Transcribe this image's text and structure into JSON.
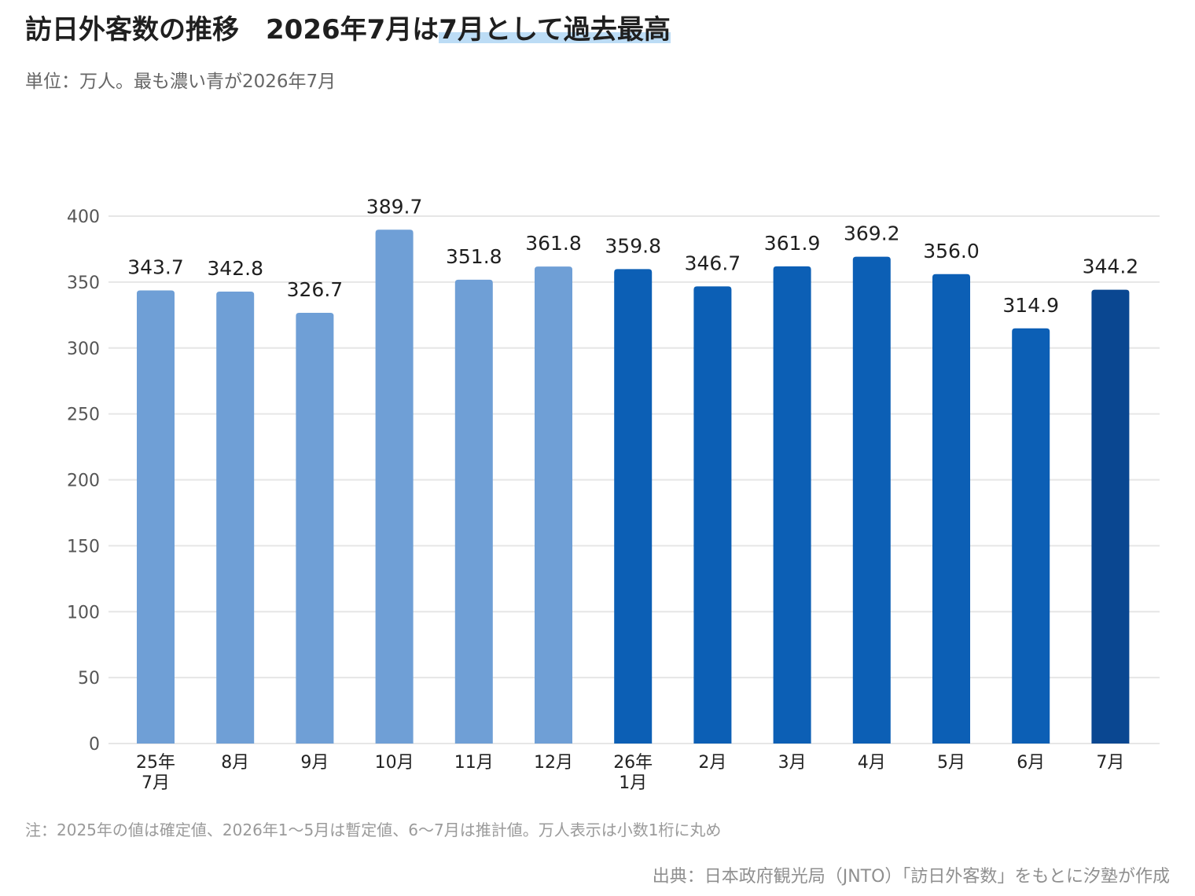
{
  "header": {
    "title_main": "訪日外客数の推移",
    "title_sub_plain": "2026年7月は",
    "title_sub_highlight": "7月として過去最高",
    "subtitle": "単位：万人。最も濃い青が2026年7月"
  },
  "footer": {
    "note": "注：2025年の値は確定値、2026年1〜5月は暫定値、6〜7月は推計値。万人表示は小数1桁に丸め",
    "source": "出典：日本政府観光局（JNTO）「訪日外客数」をもとに汐塾が作成"
  },
  "colors": {
    "year_2025": "#6f9fd6",
    "year_2026": "#0c5fb5",
    "latest": "#0a4791",
    "grid": "#e6e6e6"
  },
  "chart_data": {
    "type": "bar",
    "title": "訪日外客数の推移　2026年7月は7月として過去最高",
    "ylabel": "",
    "xlabel": "",
    "ylim": [
      0,
      400
    ],
    "yticks": [
      0,
      50,
      100,
      150,
      200,
      250,
      300,
      350,
      400
    ],
    "grid": true,
    "categories": [
      [
        "25年",
        "7月"
      ],
      [
        "8月"
      ],
      [
        "9月"
      ],
      [
        "10月"
      ],
      [
        "11月"
      ],
      [
        "12月"
      ],
      [
        "26年",
        "1月"
      ],
      [
        "2月"
      ],
      [
        "3月"
      ],
      [
        "4月"
      ],
      [
        "5月"
      ],
      [
        "6月"
      ],
      [
        "7月"
      ]
    ],
    "values": [
      343.7,
      342.8,
      326.7,
      389.7,
      351.8,
      361.8,
      359.8,
      346.7,
      361.9,
      369.2,
      356.0,
      314.9,
      344.2
    ],
    "value_labels": [
      "343.7",
      "342.8",
      "326.7",
      "389.7",
      "351.8",
      "361.8",
      "359.8",
      "346.7",
      "361.9",
      "369.2",
      "356.0",
      "314.9",
      "344.2"
    ],
    "bar_groups": [
      "year_2025",
      "year_2025",
      "year_2025",
      "year_2025",
      "year_2025",
      "year_2025",
      "year_2026",
      "year_2026",
      "year_2026",
      "year_2026",
      "year_2026",
      "year_2026",
      "latest"
    ]
  }
}
